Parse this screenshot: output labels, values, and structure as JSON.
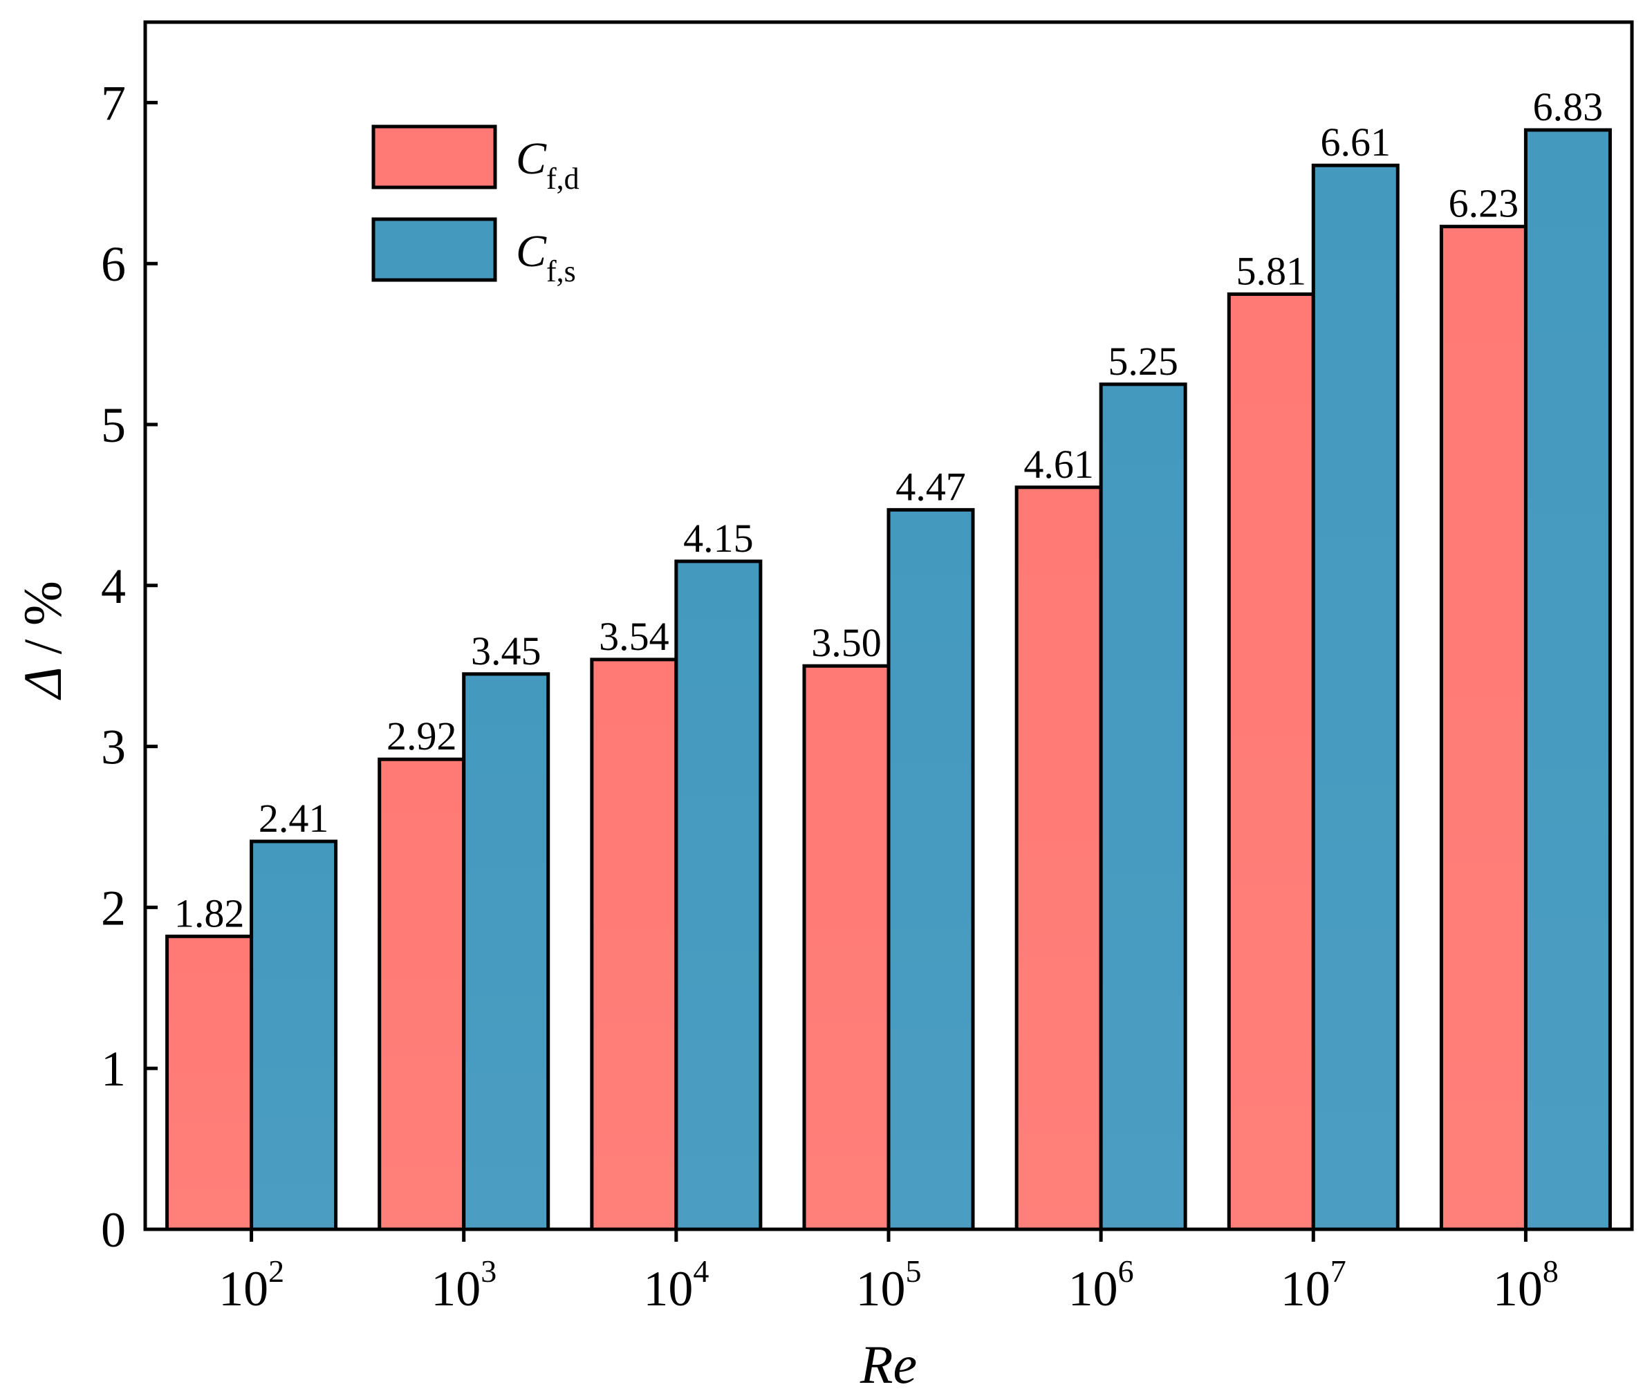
{
  "chart_data": {
    "type": "bar",
    "title": "",
    "xlabel": "Re",
    "ylabel": "Δ / %",
    "ylabel_symbol": "Δ",
    "ylabel_unit": "/ %",
    "ylim": [
      0,
      7.5
    ],
    "yticks": [
      "0",
      "1",
      "2",
      "3",
      "4",
      "5",
      "6",
      "7"
    ],
    "categories": [
      {
        "base": "10",
        "exp": "2"
      },
      {
        "base": "10",
        "exp": "3"
      },
      {
        "base": "10",
        "exp": "4"
      },
      {
        "base": "10",
        "exp": "5"
      },
      {
        "base": "10",
        "exp": "6"
      },
      {
        "base": "10",
        "exp": "7"
      },
      {
        "base": "10",
        "exp": "8"
      }
    ],
    "series": [
      {
        "name": "C_f,d",
        "symbol": "C",
        "subscript": "f,d",
        "color": "#FF7A74",
        "values": [
          1.82,
          2.92,
          3.54,
          3.5,
          4.61,
          5.81,
          6.23
        ],
        "labels": [
          "1.82",
          "2.92",
          "3.54",
          "3.50",
          "4.61",
          "5.81",
          "6.23"
        ]
      },
      {
        "name": "C_f,s",
        "symbol": "C",
        "subscript": "f,s",
        "color": "#4499BF",
        "values": [
          2.41,
          3.45,
          4.15,
          4.47,
          5.25,
          6.61,
          6.83
        ],
        "labels": [
          "2.41",
          "3.45",
          "4.15",
          "4.47",
          "5.25",
          "6.61",
          "6.83"
        ]
      }
    ],
    "legend": "top-left",
    "grid": false
  }
}
